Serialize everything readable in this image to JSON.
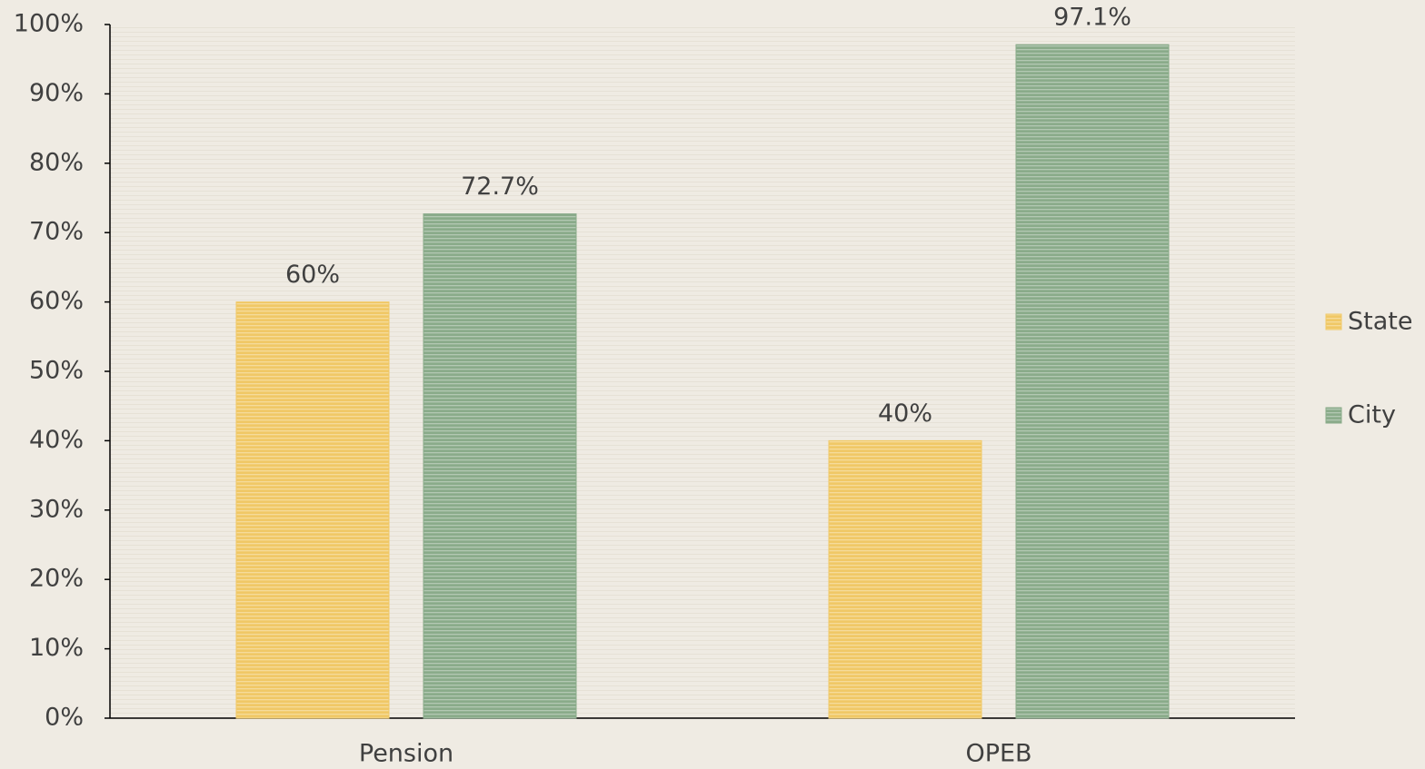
{
  "chart_data": {
    "type": "bar",
    "categories": [
      "Pension",
      "OPEB"
    ],
    "series": [
      {
        "name": "State",
        "color": "#f0c866",
        "values": [
          60,
          40
        ],
        "value_labels": [
          "60%",
          "40%"
        ]
      },
      {
        "name": "City",
        "color": "#8aab8a",
        "values": [
          72.7,
          97.1
        ],
        "value_labels": [
          "72.7%",
          "97.1%"
        ]
      }
    ],
    "ylim": [
      0,
      100
    ],
    "yticks": [
      {
        "value": 0,
        "label": "0%"
      },
      {
        "value": 10,
        "label": "10%"
      },
      {
        "value": 20,
        "label": "20%"
      },
      {
        "value": 30,
        "label": "30%"
      },
      {
        "value": 40,
        "label": "40%"
      },
      {
        "value": 50,
        "label": "50%"
      },
      {
        "value": 60,
        "label": "60%"
      },
      {
        "value": 70,
        "label": "70%"
      },
      {
        "value": 80,
        "label": "80%"
      },
      {
        "value": 90,
        "label": "90%"
      },
      {
        "value": 100,
        "label": "100%"
      }
    ],
    "legend": "right"
  }
}
